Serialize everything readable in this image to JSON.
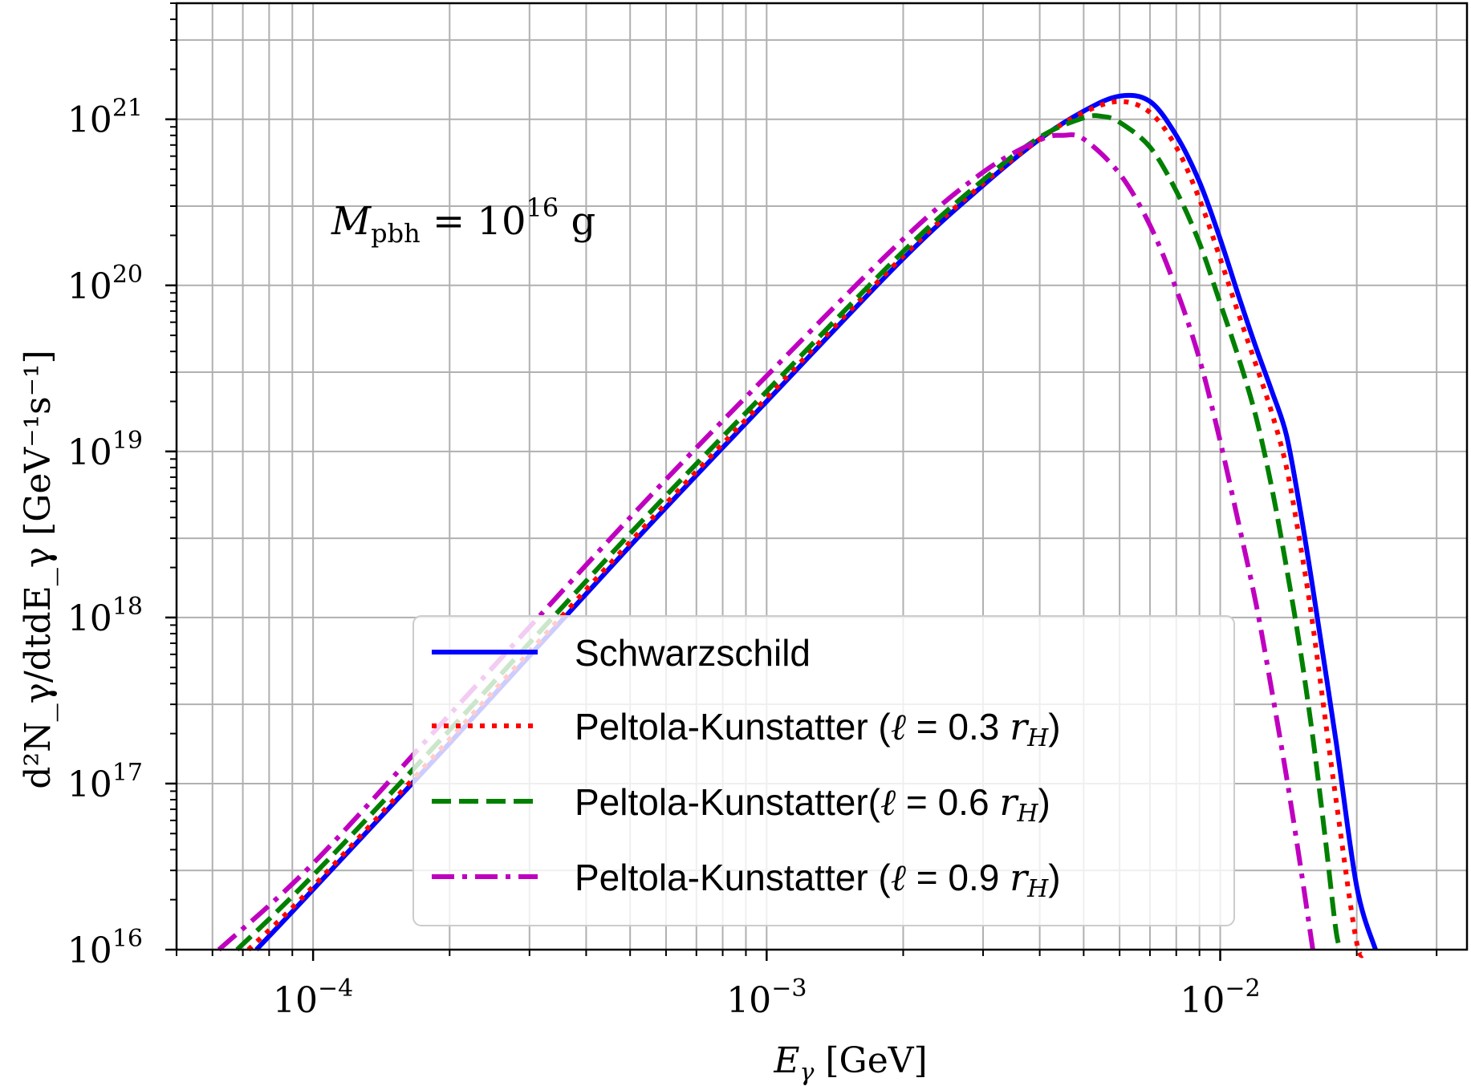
{
  "chart_data": {
    "type": "line",
    "xscale": "log",
    "yscale": "log",
    "xlim": [
      5e-05,
      0.035
    ],
    "ylim": [
      1e+16,
      5e+21
    ],
    "grid": true,
    "legend_position": "lower-center",
    "xlabel": {
      "main": "E",
      "sub": "γ",
      "unit": " [GeV]"
    },
    "ylabel": "d²N_γ/dtdE_γ [GeV⁻¹s⁻¹]",
    "annotation": {
      "prefix": "M",
      "sub": "pbh",
      "mid": " = 10",
      "sup": "16",
      "unit": " g"
    },
    "x_ticks": [
      {
        "value": 0.0001,
        "base": "10",
        "exp": "−4"
      },
      {
        "value": 0.001,
        "base": "10",
        "exp": "−3"
      },
      {
        "value": 0.01,
        "base": "10",
        "exp": "−2"
      }
    ],
    "y_ticks": [
      {
        "value": 1e+16,
        "base": "10",
        "exp": "16"
      },
      {
        "value": 1e+17,
        "base": "10",
        "exp": "17"
      },
      {
        "value": 1e+18,
        "base": "10",
        "exp": "18"
      },
      {
        "value": 1e+19,
        "base": "10",
        "exp": "19"
      },
      {
        "value": 1e+20,
        "base": "10",
        "exp": "20"
      },
      {
        "value": 1e+21,
        "base": "10",
        "exp": "21"
      }
    ],
    "series": [
      {
        "name": "Schwarzschild",
        "color": "#0000ff",
        "dash": "solid",
        "points": [
          [
            7.5e-05,
            1e+16
          ],
          [
            0.0001,
            2.3e+16
          ],
          [
            0.0002,
            1.75e+17
          ],
          [
            0.0005,
            2.7e+18
          ],
          [
            0.001,
            2e+19
          ],
          [
            0.002,
            1.45e+20
          ],
          [
            0.003,
            4e+20
          ],
          [
            0.004,
            7.6e+20
          ],
          [
            0.005,
            1.12e+21
          ],
          [
            0.006,
            1.38e+21
          ],
          [
            0.007,
            1.28e+21
          ],
          [
            0.008,
            8e+20
          ],
          [
            0.009,
            4.2e+20
          ],
          [
            0.01,
            1.9e+20
          ],
          [
            0.011,
            8.5e+19
          ],
          [
            0.012,
            4.2e+19
          ],
          [
            0.013,
            2.3e+19
          ],
          [
            0.014,
            1.25e+19
          ],
          [
            0.015,
            4.5e+18
          ],
          [
            0.016,
            1.5e+18
          ],
          [
            0.018,
            1.8e+17
          ],
          [
            0.02,
            2.4e+16
          ],
          [
            0.022,
            1e+16
          ]
        ]
      },
      {
        "name": "Peltola-Kunstatter (ℓ = 0.3 r_H)",
        "legend": {
          "prefix": "Peltola-Kunstatter (",
          "value": "0.3",
          "suffix": ")"
        },
        "color": "#ff0000",
        "dash": "dotted",
        "points": [
          [
            7.2e-05,
            1e+16
          ],
          [
            0.0001,
            2.4e+16
          ],
          [
            0.0002,
            1.85e+17
          ],
          [
            0.0005,
            2.85e+18
          ],
          [
            0.001,
            2.1e+19
          ],
          [
            0.002,
            1.5e+20
          ],
          [
            0.003,
            4.1e+20
          ],
          [
            0.004,
            7.6e+20
          ],
          [
            0.005,
            1.1e+21
          ],
          [
            0.006,
            1.28e+21
          ],
          [
            0.007,
            1.1e+21
          ],
          [
            0.008,
            6.8e+20
          ],
          [
            0.009,
            3.3e+20
          ],
          [
            0.01,
            1.45e+20
          ],
          [
            0.011,
            6.6e+19
          ],
          [
            0.012,
            3.3e+19
          ],
          [
            0.013,
            1.7e+19
          ],
          [
            0.014,
            8e+18
          ],
          [
            0.015,
            2.8e+18
          ],
          [
            0.016,
            9e+17
          ],
          [
            0.018,
            8e+16
          ],
          [
            0.02,
            1.1e+16
          ],
          [
            0.021,
            1e+16
          ]
        ]
      },
      {
        "name": "Peltola-Kunstatter(ℓ = 0.6 r_H)",
        "legend": {
          "prefix": "Peltola-Kunstatter(",
          "value": "0.6",
          "suffix": ")"
        },
        "color": "#008000",
        "dash": "dashed",
        "points": [
          [
            6.8e-05,
            1e+16
          ],
          [
            0.0001,
            2.8e+16
          ],
          [
            0.0002,
            2.1e+17
          ],
          [
            0.0005,
            3.2e+18
          ],
          [
            0.001,
            2.3e+19
          ],
          [
            0.002,
            1.6e+20
          ],
          [
            0.003,
            4.3e+20
          ],
          [
            0.004,
            7.8e+20
          ],
          [
            0.005,
            1.02e+21
          ],
          [
            0.0055,
            1.04e+21
          ],
          [
            0.006,
            9.6e+20
          ],
          [
            0.007,
            6.8e+20
          ],
          [
            0.008,
            3.7e+20
          ],
          [
            0.009,
            1.8e+20
          ],
          [
            0.01,
            7.8e+19
          ],
          [
            0.011,
            3.6e+19
          ],
          [
            0.012,
            1.6e+19
          ],
          [
            0.013,
            6e+18
          ],
          [
            0.014,
            2e+18
          ],
          [
            0.015,
            6.5e+17
          ],
          [
            0.016,
            1.9e+17
          ],
          [
            0.017,
            5e+16
          ],
          [
            0.018,
            1.3e+16
          ],
          [
            0.0185,
            1e+16
          ]
        ]
      },
      {
        "name": "Peltola-Kunstatter (ℓ = 0.9 r_H)",
        "legend": {
          "prefix": "Peltola-Kunstatter (",
          "value": "0.9",
          "suffix": ")"
        },
        "color": "#bf00bf",
        "dash": "dashdot",
        "points": [
          [
            6.2e-05,
            1e+16
          ],
          [
            0.0001,
            3.3e+16
          ],
          [
            0.0002,
            2.6e+17
          ],
          [
            0.0005,
            4e+18
          ],
          [
            0.001,
            2.85e+19
          ],
          [
            0.002,
            1.9e+20
          ],
          [
            0.003,
            4.8e+20
          ],
          [
            0.004,
            7.5e+20
          ],
          [
            0.0045,
            8e+20
          ],
          [
            0.005,
            7.6e+20
          ],
          [
            0.006,
            4.7e+20
          ],
          [
            0.007,
            2.3e+20
          ],
          [
            0.008,
            9.5e+19
          ],
          [
            0.009,
            3.6e+19
          ],
          [
            0.01,
            1.15e+19
          ],
          [
            0.011,
            3.6e+18
          ],
          [
            0.012,
            1.2e+18
          ],
          [
            0.013,
            3.6e+17
          ],
          [
            0.014,
            1.1e+17
          ],
          [
            0.015,
            3.3e+16
          ],
          [
            0.016,
            1e+16
          ]
        ]
      }
    ]
  }
}
